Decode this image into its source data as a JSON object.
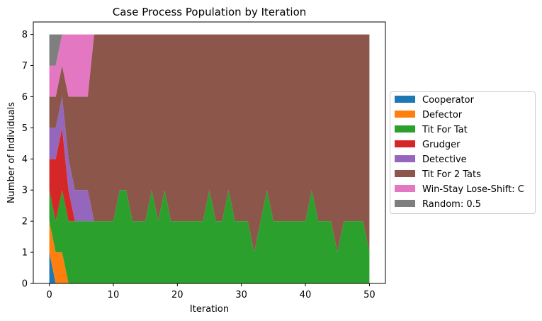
{
  "chart_data": {
    "type": "area",
    "stacked": true,
    "title": "Case Process Population by Iteration",
    "xlabel": "Iteration",
    "ylabel": "Number of Individuals",
    "xlim": [
      -2.5,
      52.5
    ],
    "ylim": [
      0,
      8.4
    ],
    "xticks": [
      0,
      10,
      20,
      30,
      40,
      50
    ],
    "yticks": [
      0,
      1,
      2,
      3,
      4,
      5,
      6,
      7,
      8
    ],
    "grid": false,
    "legend_position": "outside-right",
    "x": [
      0,
      1,
      2,
      3,
      4,
      5,
      6,
      7,
      8,
      9,
      10,
      11,
      12,
      13,
      14,
      15,
      16,
      17,
      18,
      19,
      20,
      21,
      22,
      23,
      24,
      25,
      26,
      27,
      28,
      29,
      30,
      31,
      32,
      33,
      34,
      35,
      36,
      37,
      38,
      39,
      40,
      41,
      42,
      43,
      44,
      45,
      46,
      47,
      48,
      49,
      50
    ],
    "series": [
      {
        "name": "Cooperator",
        "color": "#1f77b4",
        "values": [
          1,
          0,
          0,
          0,
          0,
          0,
          0,
          0,
          0,
          0,
          0,
          0,
          0,
          0,
          0,
          0,
          0,
          0,
          0,
          0,
          0,
          0,
          0,
          0,
          0,
          0,
          0,
          0,
          0,
          0,
          0,
          0,
          0,
          0,
          0,
          0,
          0,
          0,
          0,
          0,
          0,
          0,
          0,
          0,
          0,
          0,
          0,
          0,
          0,
          0,
          0
        ]
      },
      {
        "name": "Defector",
        "color": "#ff7f0e",
        "values": [
          1,
          1,
          1,
          0,
          0,
          0,
          0,
          0,
          0,
          0,
          0,
          0,
          0,
          0,
          0,
          0,
          0,
          0,
          0,
          0,
          0,
          0,
          0,
          0,
          0,
          0,
          0,
          0,
          0,
          0,
          0,
          0,
          0,
          0,
          0,
          0,
          0,
          0,
          0,
          0,
          0,
          0,
          0,
          0,
          0,
          0,
          0,
          0,
          0,
          0,
          0
        ]
      },
      {
        "name": "Tit For Tat",
        "color": "#2ca02c",
        "values": [
          1,
          1,
          2,
          2,
          2,
          2,
          2,
          2,
          2,
          2,
          2,
          3,
          3,
          2,
          2,
          2,
          3,
          2,
          3,
          2,
          2,
          2,
          2,
          2,
          2,
          3,
          2,
          2,
          3,
          2,
          2,
          2,
          1,
          2,
          3,
          2,
          2,
          2,
          2,
          2,
          2,
          3,
          2,
          2,
          2,
          1,
          2,
          2,
          2,
          2,
          1
        ]
      },
      {
        "name": "Grudger",
        "color": "#d62728",
        "values": [
          1,
          2,
          2,
          1,
          0,
          0,
          0,
          0,
          0,
          0,
          0,
          0,
          0,
          0,
          0,
          0,
          0,
          0,
          0,
          0,
          0,
          0,
          0,
          0,
          0,
          0,
          0,
          0,
          0,
          0,
          0,
          0,
          0,
          0,
          0,
          0,
          0,
          0,
          0,
          0,
          0,
          0,
          0,
          0,
          0,
          0,
          0,
          0,
          0,
          0,
          0
        ]
      },
      {
        "name": "Detective",
        "color": "#9467bd",
        "values": [
          1,
          1,
          1,
          1,
          1,
          1,
          1,
          0,
          0,
          0,
          0,
          0,
          0,
          0,
          0,
          0,
          0,
          0,
          0,
          0,
          0,
          0,
          0,
          0,
          0,
          0,
          0,
          0,
          0,
          0,
          0,
          0,
          0,
          0,
          0,
          0,
          0,
          0,
          0,
          0,
          0,
          0,
          0,
          0,
          0,
          0,
          0,
          0,
          0,
          0,
          0
        ]
      },
      {
        "name": "Tit For 2 Tats",
        "color": "#8c564b",
        "values": [
          1,
          1,
          1,
          2,
          3,
          3,
          3,
          6,
          6,
          6,
          6,
          5,
          5,
          6,
          6,
          6,
          5,
          6,
          5,
          6,
          6,
          6,
          6,
          6,
          6,
          5,
          6,
          6,
          5,
          6,
          6,
          6,
          7,
          6,
          5,
          6,
          6,
          6,
          6,
          6,
          6,
          5,
          6,
          6,
          6,
          7,
          6,
          6,
          6,
          6,
          7
        ]
      },
      {
        "name": "Win-Stay Lose-Shift: C",
        "color": "#e377c2",
        "values": [
          1,
          1,
          1,
          2,
          2,
          2,
          2,
          0,
          0,
          0,
          0,
          0,
          0,
          0,
          0,
          0,
          0,
          0,
          0,
          0,
          0,
          0,
          0,
          0,
          0,
          0,
          0,
          0,
          0,
          0,
          0,
          0,
          0,
          0,
          0,
          0,
          0,
          0,
          0,
          0,
          0,
          0,
          0,
          0,
          0,
          0,
          0,
          0,
          0,
          0,
          0
        ]
      },
      {
        "name": "Random: 0.5",
        "color": "#7f7f7f",
        "values": [
          1,
          1,
          0,
          0,
          0,
          0,
          0,
          0,
          0,
          0,
          0,
          0,
          0,
          0,
          0,
          0,
          0,
          0,
          0,
          0,
          0,
          0,
          0,
          0,
          0,
          0,
          0,
          0,
          0,
          0,
          0,
          0,
          0,
          0,
          0,
          0,
          0,
          0,
          0,
          0,
          0,
          0,
          0,
          0,
          0,
          0,
          0,
          0,
          0,
          0,
          0
        ]
      }
    ]
  }
}
